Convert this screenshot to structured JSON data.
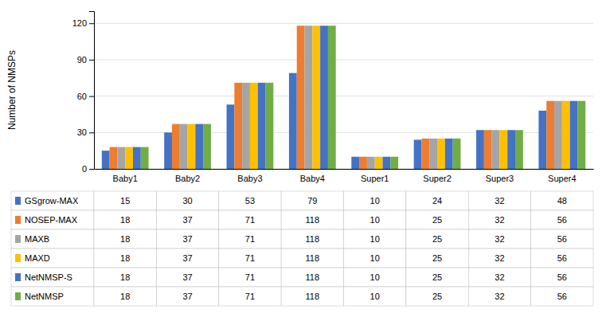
{
  "chart_data": {
    "type": "bar",
    "categories": [
      "Baby1",
      "Baby2",
      "Baby3",
      "Baby4",
      "Super1",
      "Super2",
      "Super3",
      "Super4"
    ],
    "series": [
      {
        "name": "GSgrow-MAX",
        "color": "#4472C4",
        "values": [
          15,
          30,
          53,
          79,
          10,
          24,
          32,
          48
        ]
      },
      {
        "name": "NOSEP-MAX",
        "color": "#ED7D31",
        "values": [
          18,
          37,
          71,
          118,
          10,
          25,
          32,
          56
        ]
      },
      {
        "name": "MAXB",
        "color": "#A5A5A5",
        "values": [
          18,
          37,
          71,
          118,
          10,
          25,
          32,
          56
        ]
      },
      {
        "name": "MAXD",
        "color": "#FFC000",
        "values": [
          18,
          37,
          71,
          118,
          10,
          25,
          32,
          56
        ]
      },
      {
        "name": "NetNMSP-S",
        "color": "#4472C4",
        "values": [
          18,
          37,
          71,
          118,
          10,
          25,
          32,
          56
        ]
      },
      {
        "name": "NetNMSP",
        "color": "#70AD47",
        "values": [
          18,
          37,
          71,
          118,
          10,
          25,
          32,
          56
        ]
      }
    ],
    "ylabel": "Number of NMSPs",
    "ylim": [
      0,
      130
    ],
    "yticks": [
      0,
      30,
      60,
      90,
      120
    ],
    "grid": true
  }
}
